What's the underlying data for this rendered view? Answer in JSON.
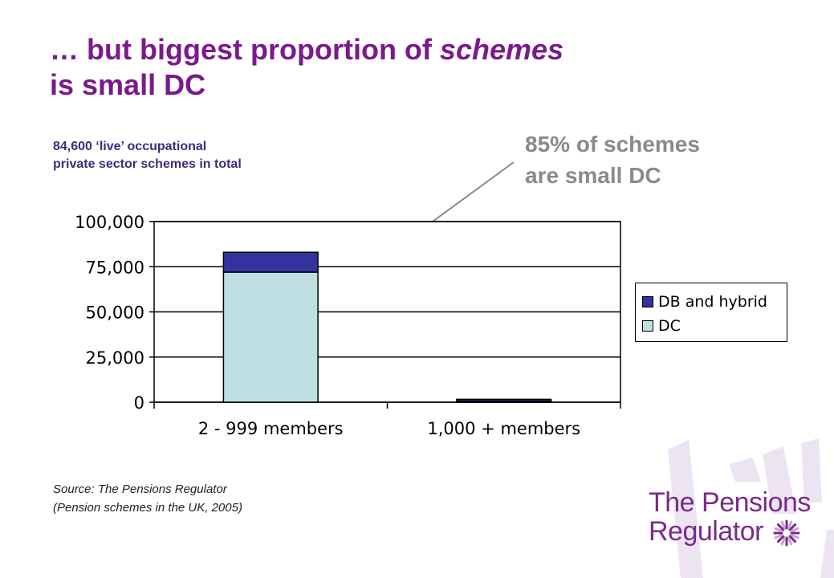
{
  "title": {
    "line1_prefix": "… but biggest proportion of ",
    "line1_emphasis": "schemes",
    "line2": "is small DC"
  },
  "subtitle": {
    "line1": "84,600 ‘live’ occupational",
    "line2": "private sector schemes in total"
  },
  "callout": {
    "line1": "85% of schemes",
    "line2": "are small DC"
  },
  "source": {
    "line1": "Source: The Pensions Regulator",
    "line2": "(Pension schemes in the UK, 2005)"
  },
  "brand": {
    "line1": "The Pensions",
    "line2": "Regulator"
  },
  "colors": {
    "title": "#7a1a8c",
    "db_and_hybrid": "#3333a0",
    "dc": "#bfe0e3",
    "callout": "#8a8a8a",
    "decor": "#ede4f2"
  },
  "icons": {
    "logo_mark": "sunburst-icon"
  },
  "chart_data": {
    "type": "bar",
    "stacked": true,
    "categories": [
      "2 - 999 members",
      "1,000 + members"
    ],
    "series": [
      {
        "name": "DC",
        "values": [
          72000,
          600
        ]
      },
      {
        "name": "DB and hybrid",
        "values": [
          11000,
          1000
        ]
      }
    ],
    "ylim": [
      0,
      100000
    ],
    "yticks": [
      "0",
      "25,000",
      "50,000",
      "75,000",
      "100,000"
    ],
    "ytick_values": [
      0,
      25000,
      50000,
      75000,
      100000
    ],
    "grid": true,
    "legend_position": "right",
    "legend_order": [
      "DB and hybrid",
      "DC"
    ]
  }
}
